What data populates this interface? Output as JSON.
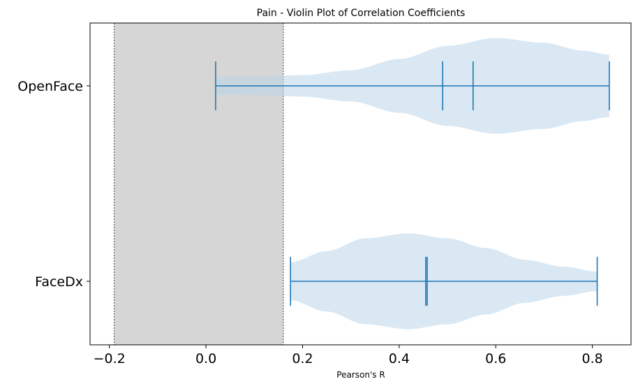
{
  "chart_data": {
    "type": "violin",
    "orientation": "horizontal",
    "title": "Pain - Violin Plot of Correlation Coefficients",
    "xlabel": "Pearson's R",
    "ylabel": "",
    "xlim": [
      -0.24,
      0.88
    ],
    "xticks": [
      -0.2,
      0.0,
      0.2,
      0.4,
      0.6,
      0.8
    ],
    "xtick_labels": [
      "−0.2",
      "0.0",
      "0.2",
      "0.4",
      "0.6",
      "0.8"
    ],
    "shaded_region": {
      "from": -0.19,
      "to": 0.16,
      "color": "#d6d6d6",
      "boundary_style": "dotted"
    },
    "violin_color": "#bcd6ea",
    "line_color": "#1f77b4",
    "grid": false,
    "legend": "none",
    "series": [
      {
        "category": "OpenFace",
        "min": 0.02,
        "max": 0.835,
        "mean": 0.49,
        "median": 0.553,
        "density": [
          [
            0.02,
            0.18
          ],
          [
            0.1,
            0.19
          ],
          [
            0.2,
            0.22
          ],
          [
            0.3,
            0.32
          ],
          [
            0.4,
            0.55
          ],
          [
            0.5,
            0.82
          ],
          [
            0.6,
            0.98
          ],
          [
            0.7,
            0.88
          ],
          [
            0.78,
            0.72
          ],
          [
            0.835,
            0.64
          ]
        ]
      },
      {
        "category": "FaceDx",
        "min": 0.175,
        "max": 0.81,
        "mean": 0.455,
        "median": 0.458,
        "density": [
          [
            0.175,
            0.39
          ],
          [
            0.25,
            0.62
          ],
          [
            0.33,
            0.88
          ],
          [
            0.42,
            0.98
          ],
          [
            0.5,
            0.88
          ],
          [
            0.58,
            0.68
          ],
          [
            0.66,
            0.44
          ],
          [
            0.74,
            0.3
          ],
          [
            0.81,
            0.2
          ]
        ]
      }
    ]
  }
}
